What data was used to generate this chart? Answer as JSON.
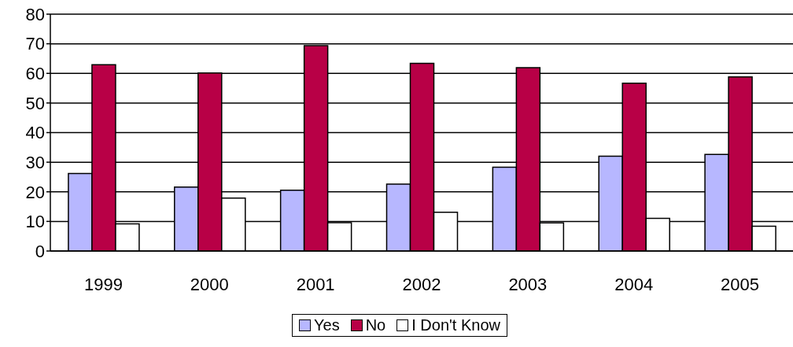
{
  "chart_data": {
    "type": "bar",
    "categories": [
      "1999",
      "2000",
      "2001",
      "2002",
      "2003",
      "2004",
      "2005"
    ],
    "series": [
      {
        "name": "Yes",
        "color": "#b7b7ff",
        "values": [
          26.2,
          21.6,
          20.5,
          22.6,
          28.3,
          32.0,
          32.6
        ]
      },
      {
        "name": "No",
        "color": "#b80046",
        "values": [
          62.9,
          60.1,
          69.4,
          63.4,
          61.9,
          56.7,
          58.8
        ]
      },
      {
        "name": "I Don't Know",
        "color": "#ffffff",
        "values": [
          9.2,
          17.9,
          9.6,
          13.1,
          9.5,
          11.0,
          8.4
        ]
      }
    ],
    "ylim": [
      0,
      80
    ],
    "yticks": [
      0,
      10,
      20,
      30,
      40,
      50,
      60,
      70,
      80
    ],
    "grid": "y",
    "legend": "bottom"
  }
}
